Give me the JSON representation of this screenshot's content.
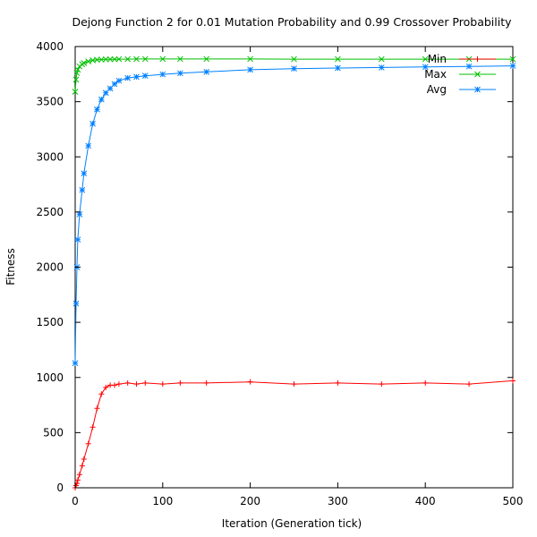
{
  "chart_data": {
    "type": "line",
    "title": "Dejong Function 2 for 0.01 Mutation Probability and 0.99 Crossover Probability",
    "xlabel": "Iteration (Generation tick)",
    "ylabel": "Fitness",
    "xlim": [
      0,
      500
    ],
    "ylim": [
      0,
      4000
    ],
    "x_ticks": [
      0,
      100,
      200,
      300,
      400,
      500
    ],
    "y_ticks": [
      0,
      500,
      1000,
      1500,
      2000,
      2500,
      3000,
      3500,
      4000
    ],
    "grid": false,
    "legend_position": "top-right",
    "x": [
      0,
      1,
      2,
      3,
      5,
      8,
      10,
      15,
      20,
      25,
      30,
      35,
      40,
      45,
      50,
      60,
      70,
      80,
      100,
      120,
      150,
      200,
      250,
      300,
      350,
      400,
      450,
      500
    ],
    "series": [
      {
        "name": "Min",
        "marker": "+",
        "color": "#ff0000",
        "values": [
          0,
          20,
          40,
          70,
          120,
          200,
          260,
          400,
          550,
          720,
          850,
          910,
          930,
          930,
          940,
          950,
          940,
          950,
          940,
          950,
          950,
          960,
          940,
          950,
          940,
          950,
          940,
          970
        ]
      },
      {
        "name": "Max",
        "marker": "x",
        "color": "#00c000",
        "values": [
          3590,
          3700,
          3760,
          3790,
          3820,
          3840,
          3850,
          3865,
          3875,
          3880,
          3882,
          3884,
          3885,
          3885,
          3886,
          3886,
          3887,
          3887,
          3887,
          3887,
          3887,
          3887,
          3886,
          3886,
          3886,
          3886,
          3886,
          3886
        ]
      },
      {
        "name": "Avg",
        "marker": "*",
        "color": "#0080ff",
        "values": [
          1130,
          1670,
          2000,
          2250,
          2480,
          2700,
          2850,
          3100,
          3300,
          3430,
          3520,
          3580,
          3620,
          3660,
          3690,
          3715,
          3725,
          3735,
          3748,
          3758,
          3770,
          3790,
          3800,
          3805,
          3810,
          3815,
          3820,
          3825
        ]
      }
    ]
  }
}
